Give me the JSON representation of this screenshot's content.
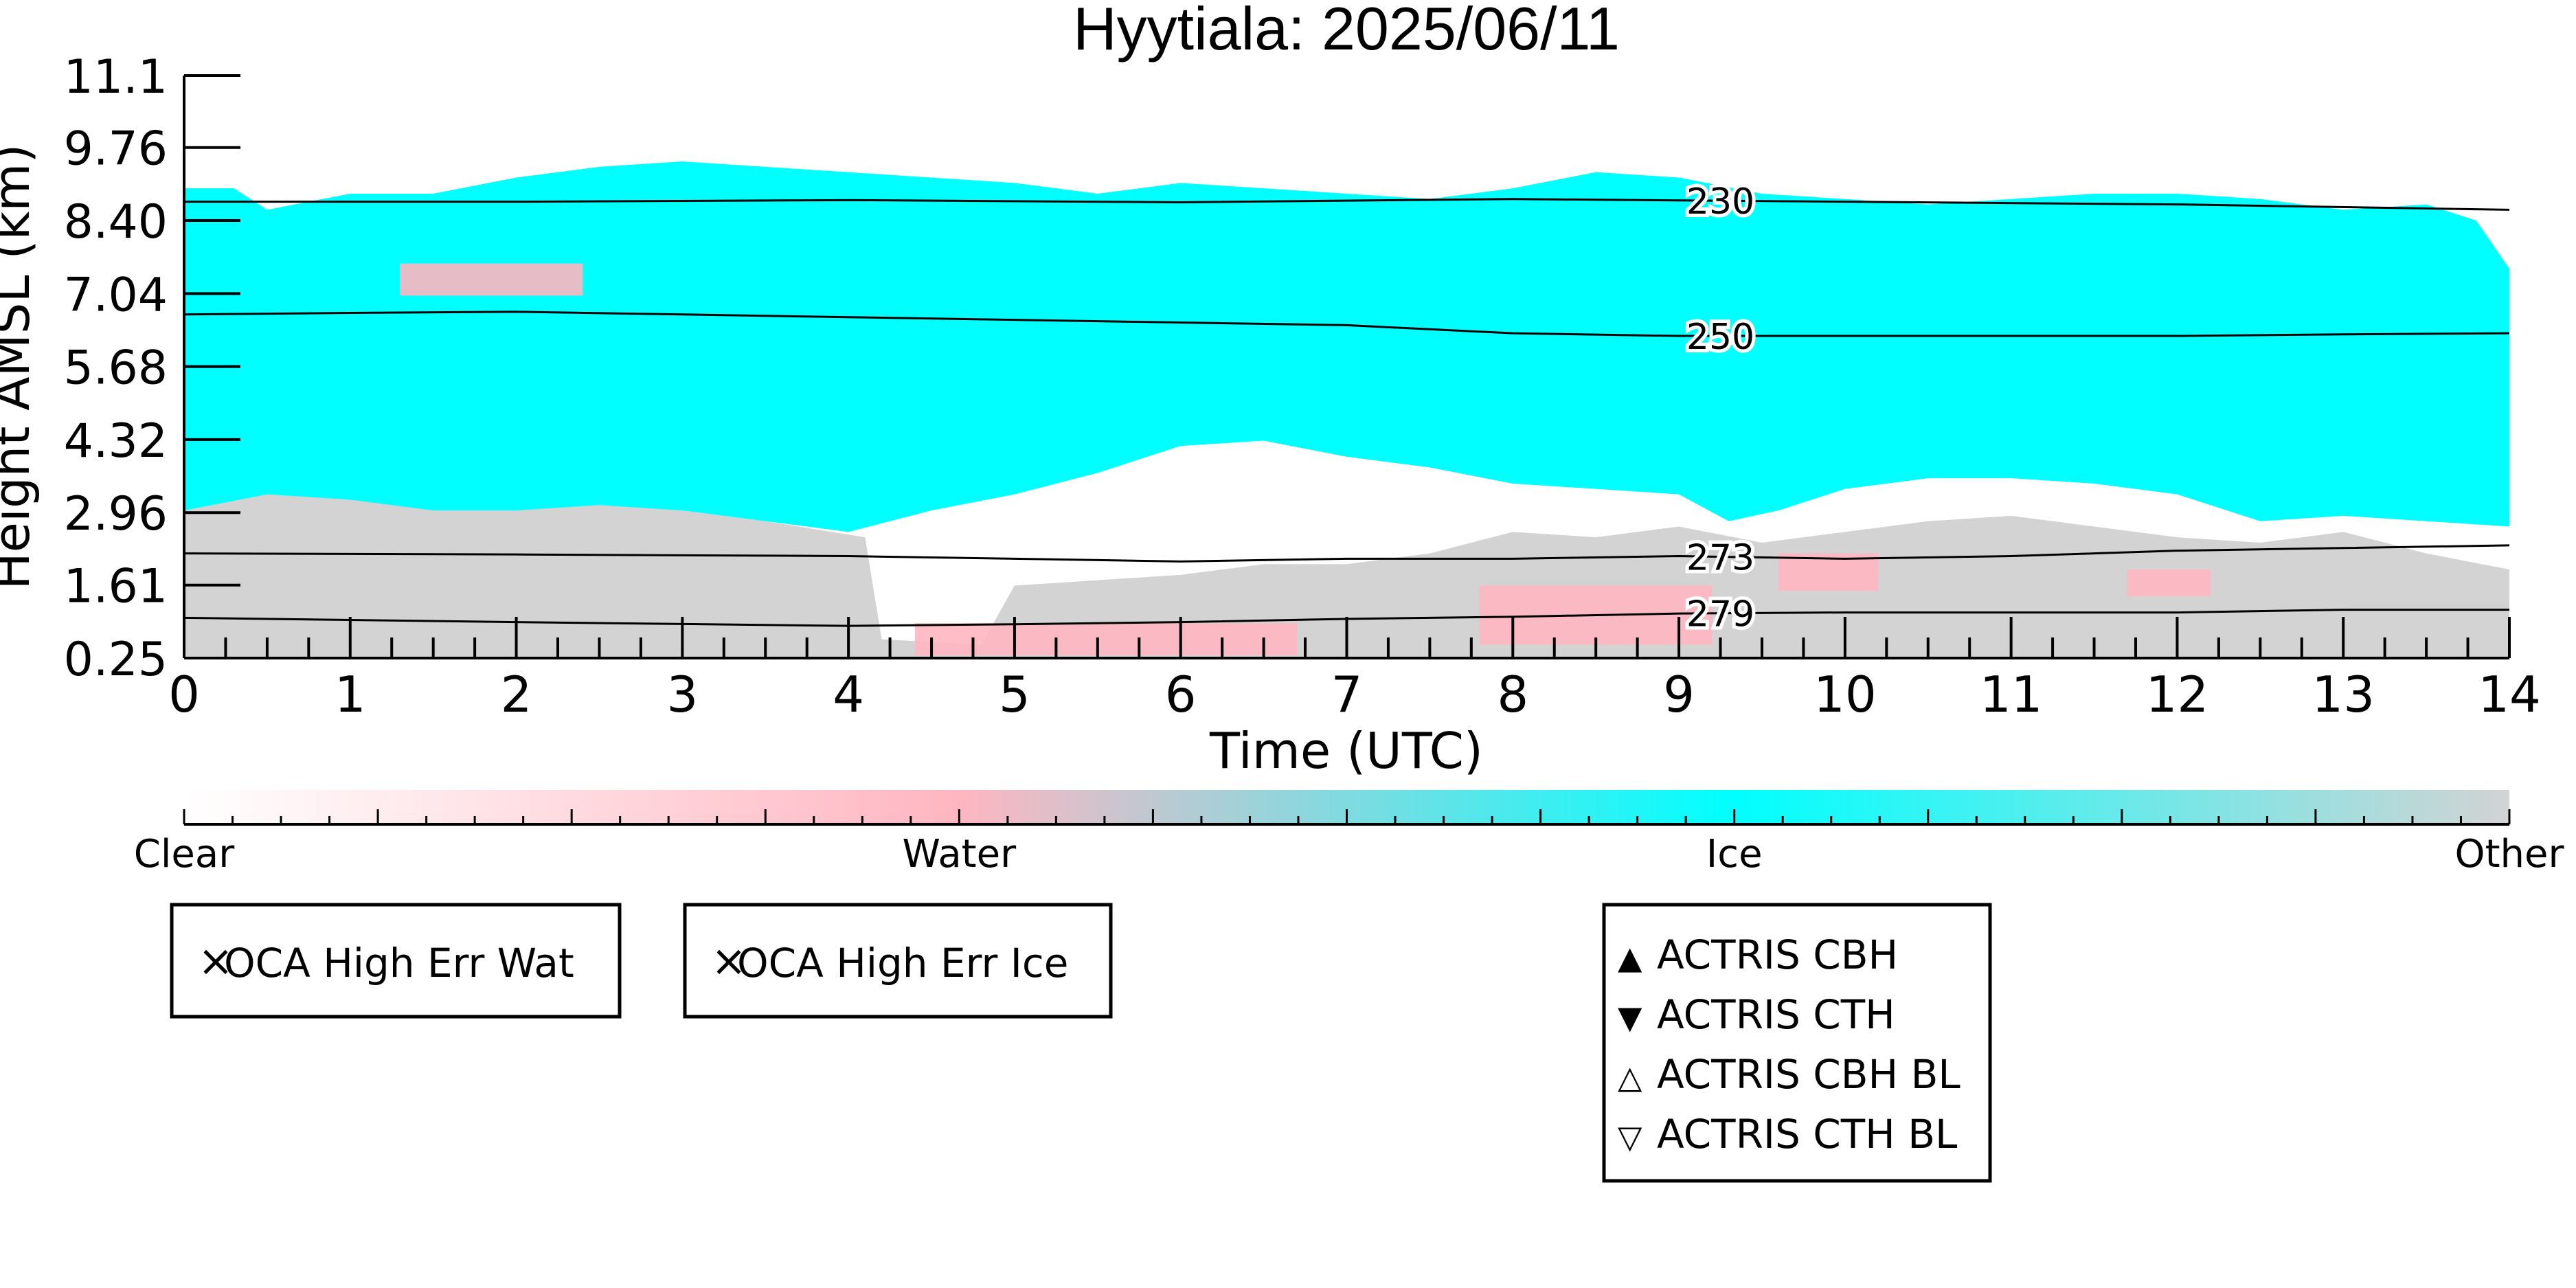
{
  "chart_data": {
    "type": "heatmap",
    "title": "Hyytiala: 2025/06/11",
    "xlabel": "Time (UTC)",
    "ylabel": "Height AMSL (km)",
    "xlim": [
      0,
      14
    ],
    "ylim": [
      0.25,
      11.1
    ],
    "x_ticks": [
      "0",
      "1",
      "2",
      "3",
      "4",
      "5",
      "6",
      "7",
      "8",
      "9",
      "10",
      "11",
      "12",
      "13",
      "14"
    ],
    "y_ticks": [
      "0.25",
      "1.61",
      "2.96",
      "4.32",
      "5.68",
      "7.04",
      "8.40",
      "9.76",
      "11.1"
    ],
    "colors": {
      "clear": "#ffffff",
      "water": "#ffb6c1",
      "ice": "#00ffff",
      "other": "#d3d3d3"
    },
    "cloud_layers": {
      "ice_top_km": [
        [
          0.0,
          9.0
        ],
        [
          0.3,
          9.0
        ],
        [
          0.5,
          8.6
        ],
        [
          1.0,
          8.9
        ],
        [
          1.5,
          8.9
        ],
        [
          2.0,
          9.2
        ],
        [
          2.5,
          9.4
        ],
        [
          3.0,
          9.5
        ],
        [
          3.5,
          9.4
        ],
        [
          4.0,
          9.3
        ],
        [
          4.5,
          9.2
        ],
        [
          5.0,
          9.1
        ],
        [
          5.5,
          8.9
        ],
        [
          6.0,
          9.1
        ],
        [
          6.5,
          9.0
        ],
        [
          7.0,
          8.9
        ],
        [
          7.5,
          8.8
        ],
        [
          8.0,
          9.0
        ],
        [
          8.5,
          9.3
        ],
        [
          9.0,
          9.2
        ],
        [
          9.5,
          8.9
        ],
        [
          10.0,
          8.8
        ],
        [
          10.5,
          8.7
        ],
        [
          11.0,
          8.8
        ],
        [
          11.5,
          8.9
        ],
        [
          12.0,
          8.9
        ],
        [
          12.5,
          8.8
        ],
        [
          13.0,
          8.6
        ],
        [
          13.5,
          8.7
        ],
        [
          13.8,
          8.4
        ],
        [
          14.0,
          7.5
        ]
      ],
      "ice_base_km": [
        [
          0.0,
          3.0
        ],
        [
          0.5,
          3.3
        ],
        [
          1.0,
          3.2
        ],
        [
          1.5,
          3.0
        ],
        [
          2.0,
          3.0
        ],
        [
          2.5,
          3.1
        ],
        [
          3.0,
          3.0
        ],
        [
          3.5,
          2.8
        ],
        [
          4.0,
          2.6
        ],
        [
          4.5,
          3.0
        ],
        [
          5.0,
          3.3
        ],
        [
          5.5,
          3.7
        ],
        [
          6.0,
          4.2
        ],
        [
          6.5,
          4.3
        ],
        [
          7.0,
          4.0
        ],
        [
          7.5,
          3.8
        ],
        [
          8.0,
          3.5
        ],
        [
          8.5,
          3.4
        ],
        [
          9.0,
          3.3
        ],
        [
          9.3,
          2.8
        ],
        [
          9.6,
          3.0
        ],
        [
          10.0,
          3.4
        ],
        [
          10.5,
          3.6
        ],
        [
          11.0,
          3.6
        ],
        [
          11.5,
          3.5
        ],
        [
          12.0,
          3.3
        ],
        [
          12.5,
          2.8
        ],
        [
          13.0,
          2.9
        ],
        [
          13.5,
          2.8
        ],
        [
          14.0,
          2.7
        ]
      ],
      "other_top_km": [
        [
          0.0,
          3.0
        ],
        [
          0.5,
          3.4
        ],
        [
          1.0,
          3.3
        ],
        [
          1.5,
          3.1
        ],
        [
          2.0,
          3.1
        ],
        [
          2.5,
          3.2
        ],
        [
          3.0,
          3.0
        ],
        [
          3.5,
          2.8
        ],
        [
          4.1,
          2.5
        ],
        [
          4.2,
          0.6
        ],
        [
          4.8,
          0.5
        ],
        [
          5.0,
          1.6
        ],
        [
          5.5,
          1.7
        ],
        [
          6.0,
          1.8
        ],
        [
          6.5,
          2.0
        ],
        [
          7.0,
          2.0
        ],
        [
          7.5,
          2.2
        ],
        [
          8.0,
          2.6
        ],
        [
          8.5,
          2.5
        ],
        [
          9.0,
          2.7
        ],
        [
          9.5,
          2.4
        ],
        [
          10.0,
          2.6
        ],
        [
          10.5,
          2.8
        ],
        [
          11.0,
          2.9
        ],
        [
          11.5,
          2.7
        ],
        [
          12.0,
          2.5
        ],
        [
          12.5,
          2.4
        ],
        [
          13.0,
          2.6
        ],
        [
          13.5,
          2.2
        ],
        [
          14.0,
          1.9
        ]
      ],
      "water_patches": [
        {
          "x": [
            1.3,
            2.4
          ],
          "y": [
            7.0,
            7.6
          ]
        },
        {
          "x": [
            4.4,
            6.7
          ],
          "y": [
            0.3,
            0.9
          ]
        },
        {
          "x": [
            7.8,
            9.2
          ],
          "y": [
            0.5,
            1.6
          ]
        },
        {
          "x": [
            9.6,
            10.2
          ],
          "y": [
            1.5,
            2.2
          ]
        },
        {
          "x": [
            11.7,
            12.2
          ],
          "y": [
            1.4,
            1.9
          ]
        }
      ]
    },
    "contours": [
      {
        "label": "230",
        "points": [
          [
            0,
            8.75
          ],
          [
            2,
            8.75
          ],
          [
            4,
            8.78
          ],
          [
            6,
            8.74
          ],
          [
            8,
            8.8
          ],
          [
            10,
            8.75
          ],
          [
            12,
            8.7
          ],
          [
            14,
            8.6
          ]
        ]
      },
      {
        "label": "250",
        "points": [
          [
            0,
            6.65
          ],
          [
            1,
            6.68
          ],
          [
            2,
            6.7
          ],
          [
            3,
            6.65
          ],
          [
            4,
            6.6
          ],
          [
            5,
            6.55
          ],
          [
            6,
            6.5
          ],
          [
            7,
            6.45
          ],
          [
            8,
            6.3
          ],
          [
            9,
            6.25
          ],
          [
            10,
            6.25
          ],
          [
            11,
            6.25
          ],
          [
            12,
            6.25
          ],
          [
            13,
            6.28
          ],
          [
            14,
            6.3
          ]
        ]
      },
      {
        "label": "273",
        "points": [
          [
            0,
            2.2
          ],
          [
            2,
            2.18
          ],
          [
            4,
            2.15
          ],
          [
            5,
            2.1
          ],
          [
            6,
            2.05
          ],
          [
            7,
            2.1
          ],
          [
            8,
            2.1
          ],
          [
            9,
            2.15
          ],
          [
            10,
            2.1
          ],
          [
            11,
            2.15
          ],
          [
            12,
            2.25
          ],
          [
            13,
            2.3
          ],
          [
            14,
            2.35
          ]
        ]
      },
      {
        "label": "279",
        "points": [
          [
            0,
            1.0
          ],
          [
            2,
            0.92
          ],
          [
            4,
            0.85
          ],
          [
            5,
            0.88
          ],
          [
            6,
            0.92
          ],
          [
            7,
            0.98
          ],
          [
            8,
            1.02
          ],
          [
            9,
            1.08
          ],
          [
            10,
            1.1
          ],
          [
            11,
            1.1
          ],
          [
            12,
            1.1
          ],
          [
            13,
            1.15
          ],
          [
            14,
            1.15
          ]
        ]
      }
    ],
    "colorbar": {
      "labels": [
        "Clear",
        "Water",
        "Ice",
        "Other"
      ],
      "values": [
        0,
        1,
        2,
        3
      ]
    }
  },
  "legends": {
    "oca_water": {
      "symbol": "×",
      "label": "OCA High Err Wat",
      "color": "#22bb22"
    },
    "oca_ice": {
      "symbol": "×",
      "label": "OCA High Err Ice",
      "color": "#0000dd"
    },
    "actris": [
      {
        "symbol": "▲",
        "label": "ACTRIS CBH",
        "color": "#ff0000"
      },
      {
        "symbol": "▼",
        "label": "ACTRIS CTH",
        "color": "#ff0000"
      },
      {
        "symbol": "△",
        "label": "ACTRIS CBH BL",
        "color": "#ff0000"
      },
      {
        "symbol": "▽",
        "label": "ACTRIS CTH BL",
        "color": "#ff0000"
      }
    ]
  }
}
